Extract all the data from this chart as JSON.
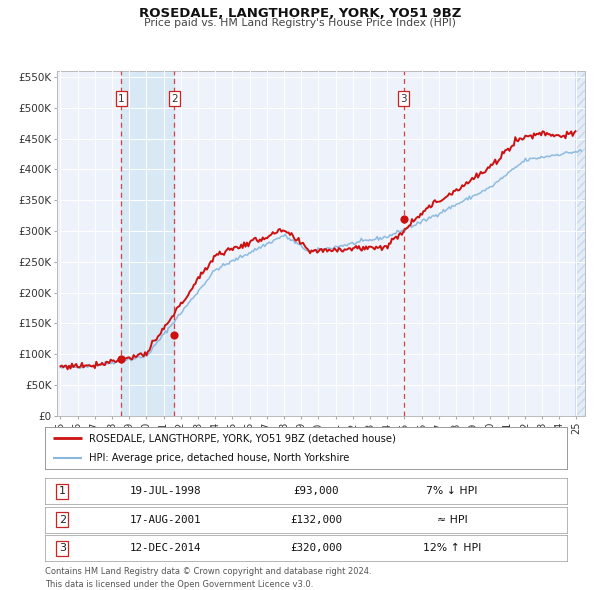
{
  "title": "ROSEDALE, LANGTHORPE, YORK, YO51 9BZ",
  "subtitle": "Price paid vs. HM Land Registry's House Price Index (HPI)",
  "background_color": "#ffffff",
  "plot_bg_color": "#eef2fa",
  "grid_color": "#ffffff",
  "hpi_line_color": "#89b8df",
  "price_line_color": "#cc1111",
  "sale_marker_color": "#cc1111",
  "vline_color_red": "#cc3333",
  "sale_band_color": "#d8e8f5",
  "ylim": [
    0,
    560000
  ],
  "ytick_values": [
    0,
    50000,
    100000,
    150000,
    200000,
    250000,
    300000,
    350000,
    400000,
    450000,
    500000,
    550000
  ],
  "ytick_labels": [
    "£0",
    "£50K",
    "£100K",
    "£150K",
    "£200K",
    "£250K",
    "£300K",
    "£350K",
    "£400K",
    "£450K",
    "£500K",
    "£550K"
  ],
  "xlim_start": 1994.8,
  "xlim_end": 2025.5,
  "xtick_years": [
    1995,
    1996,
    1997,
    1998,
    1999,
    2000,
    2001,
    2002,
    2003,
    2004,
    2005,
    2006,
    2007,
    2008,
    2009,
    2010,
    2011,
    2012,
    2013,
    2014,
    2015,
    2016,
    2017,
    2018,
    2019,
    2020,
    2021,
    2022,
    2023,
    2024,
    2025
  ],
  "sales": [
    {
      "num": 1,
      "date": "19-JUL-1998",
      "price": 93000,
      "x": 1998.54,
      "hpi_note": "7% ↓ HPI"
    },
    {
      "num": 2,
      "date": "17-AUG-2001",
      "price": 132000,
      "x": 2001.63,
      "hpi_note": "≈ HPI"
    },
    {
      "num": 3,
      "date": "12-DEC-2014",
      "price": 320000,
      "x": 2014.95,
      "hpi_note": "12% ↑ HPI"
    }
  ],
  "legend_entries": [
    {
      "label": "ROSEDALE, LANGTHORPE, YORK, YO51 9BZ (detached house)",
      "color": "#cc1111",
      "lw": 2.0
    },
    {
      "label": "HPI: Average price, detached house, North Yorkshire",
      "color": "#89b8df",
      "lw": 1.5
    }
  ],
  "footnote1": "Contains HM Land Registry data © Crown copyright and database right 2024.",
  "footnote2": "This data is licensed under the Open Government Licence v3.0."
}
